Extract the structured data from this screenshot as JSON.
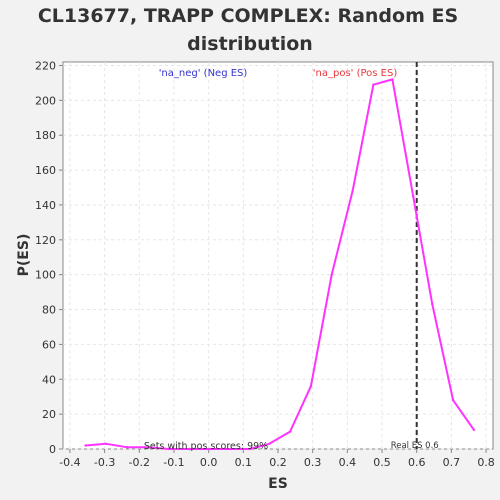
{
  "chart_data": {
    "type": "line",
    "title_line1": "CL13677, TRAPP COMPLEX: Random ES",
    "title_line2": "distribution",
    "xlabel": "ES",
    "ylabel": "P(ES)",
    "xlim": [
      -0.42,
      0.82
    ],
    "ylim": [
      0,
      222
    ],
    "x_ticks": [
      -0.4,
      -0.3,
      -0.2,
      -0.1,
      0.0,
      0.1,
      0.2,
      0.3,
      0.4,
      0.5,
      0.6,
      0.7,
      0.8
    ],
    "x_tick_labels": [
      "-0.4",
      "-0.3",
      "-0.2",
      "-0.1",
      "0.0",
      "0.1",
      "0.2",
      "0.3",
      "0.4",
      "0.5",
      "0.6",
      "0.7",
      "0.8"
    ],
    "y_ticks": [
      0,
      20,
      40,
      60,
      80,
      100,
      120,
      140,
      160,
      180,
      200,
      220
    ],
    "y_tick_labels": [
      "0",
      "20",
      "40",
      "60",
      "80",
      "100",
      "120",
      "140",
      "160",
      "180",
      "200",
      "220"
    ],
    "grid": true,
    "series": [
      {
        "color": "#ff33ff",
        "x": [
          -0.355,
          -0.295,
          -0.235,
          -0.175,
          -0.115,
          -0.055,
          0.005,
          0.065,
          0.12,
          0.175,
          0.235,
          0.295,
          0.355,
          0.415,
          0.475,
          0.53,
          0.59,
          0.645,
          0.705,
          0.765
        ],
        "y": [
          2,
          3,
          1,
          1,
          0,
          0,
          0,
          0,
          0,
          3,
          10,
          36,
          100,
          148,
          209,
          212,
          145,
          83,
          28,
          11
        ]
      }
    ],
    "real_es": 0.6,
    "real_es_label": "Real ES 0.6",
    "annotations": {
      "neg_label": "'na_neg' (Neg ES)",
      "pos_label": "'na_pos' (Pos ES)",
      "pos_scores_label": "Sets with pos scores: 99%"
    },
    "colors": {
      "background": "#f2f2f2",
      "plot_background": "#ffffff",
      "grid": "#e6e6e6",
      "line": "#ff33ff",
      "neg_label": "#3333cc",
      "pos_label": "#e8383d",
      "real_es_line": "#333333",
      "text": "#333333"
    }
  }
}
